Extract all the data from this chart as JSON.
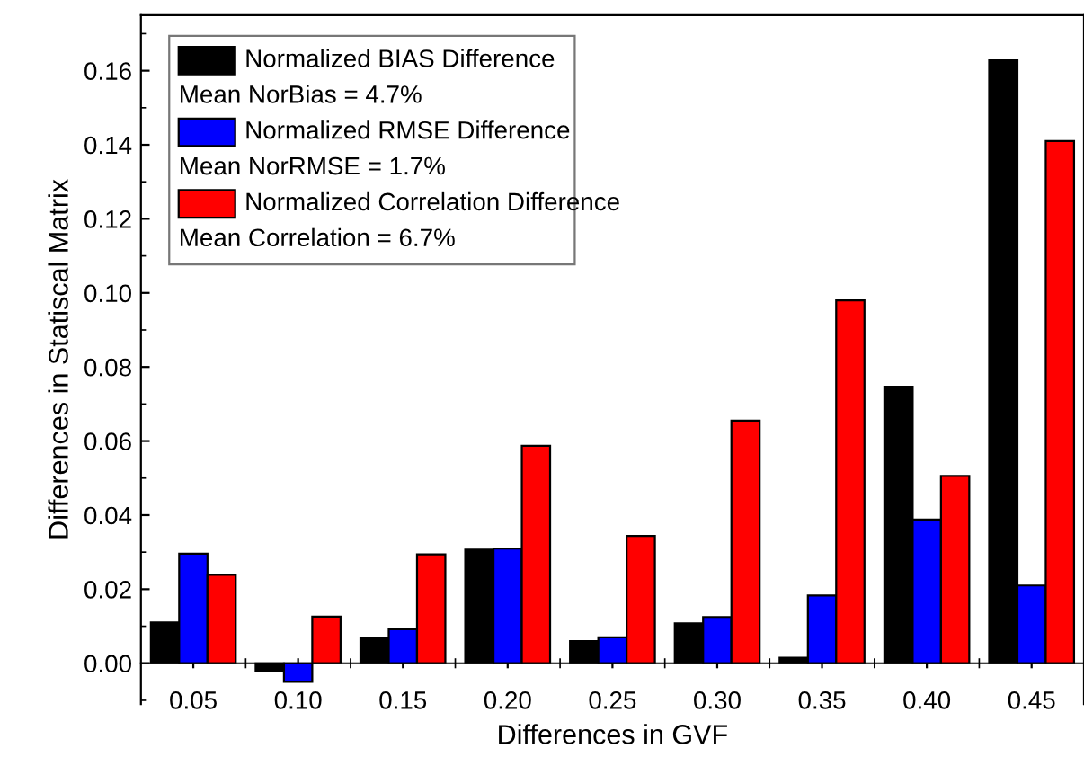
{
  "chart_data": {
    "type": "bar",
    "xlabel": "Differences in GVF",
    "ylabel": "Differences in Statiscal Matrix",
    "categories": [
      "0.05",
      "0.10",
      "0.15",
      "0.20",
      "0.25",
      "0.30",
      "0.35",
      "0.40",
      "0.45"
    ],
    "series": [
      {
        "name": "Normalized BIAS Difference",
        "color": "#000000",
        "values": [
          0.011,
          -0.002,
          0.0068,
          0.0307,
          0.006,
          0.0108,
          0.0015,
          0.0747,
          0.1628
        ]
      },
      {
        "name": "Normalized RMSE Difference",
        "color": "#0000ff",
        "values": [
          0.0296,
          -0.005,
          0.0092,
          0.031,
          0.007,
          0.0125,
          0.0183,
          0.0388,
          0.021
        ]
      },
      {
        "name": "Normalized Correlation Difference",
        "color": "#ff0000",
        "values": [
          0.0239,
          0.0126,
          0.0294,
          0.0587,
          0.0344,
          0.0655,
          0.098,
          0.0506,
          0.141
        ]
      }
    ],
    "annotations": [
      "Mean NorBias = 4.7%",
      "Mean NorRMSE = 1.7%",
      "Mean Correlation = 6.7%"
    ],
    "ylim": [
      -0.011,
      0.175
    ],
    "yticks": [
      {
        "value": 0,
        "label": "0.00"
      },
      {
        "value": 0.02,
        "label": "0.02"
      },
      {
        "value": 0.04,
        "label": "0.04"
      },
      {
        "value": 0.06,
        "label": "0.06"
      },
      {
        "value": 0.08,
        "label": "0.08"
      },
      {
        "value": 0.1,
        "label": "0.10"
      },
      {
        "value": 0.12,
        "label": "0.12"
      },
      {
        "value": 0.14,
        "label": "0.14"
      },
      {
        "value": 0.16,
        "label": "0.16"
      }
    ],
    "legend": "top left",
    "grid": false
  }
}
